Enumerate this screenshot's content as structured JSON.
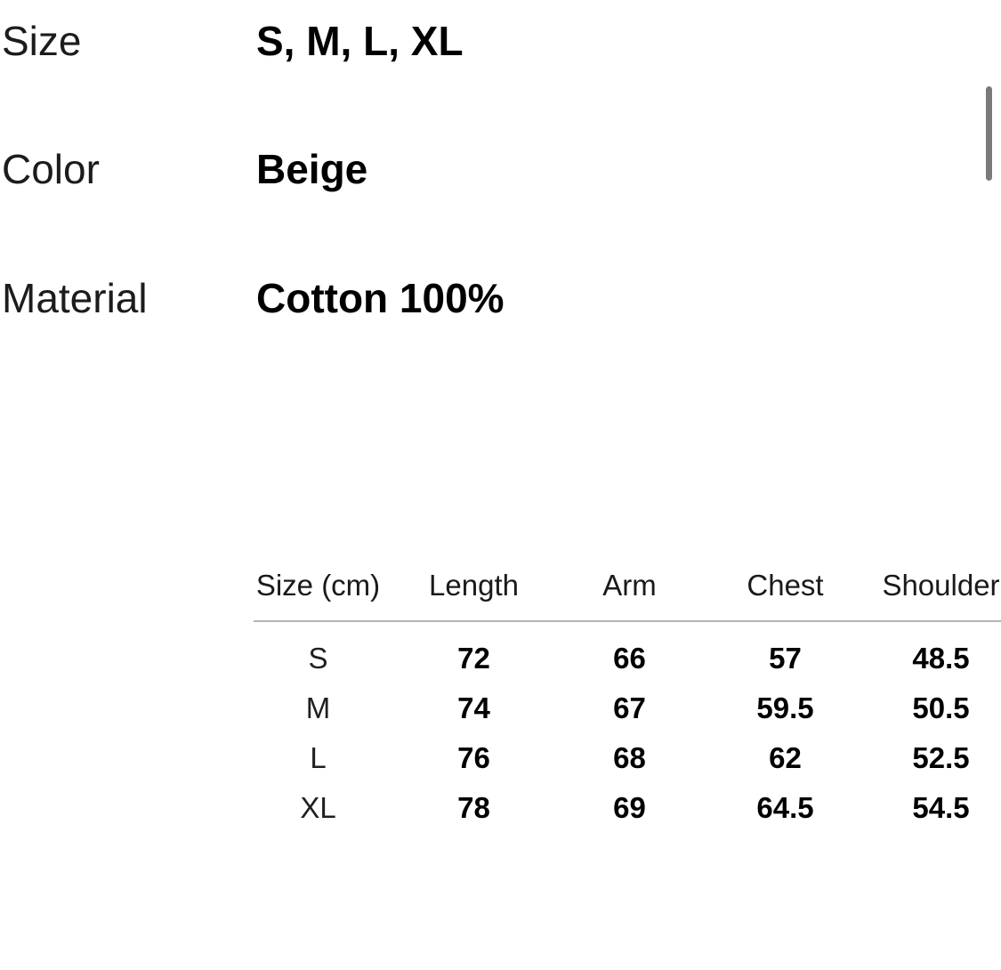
{
  "specs": [
    {
      "label": "Size",
      "value": "S, M, L, XL"
    },
    {
      "label": "Color",
      "value": "Beige"
    },
    {
      "label": "Material",
      "value": "Cotton 100%"
    }
  ],
  "size_table": {
    "headers": [
      "Size (cm)",
      "Length",
      "Arm",
      "Chest",
      "Shoulder"
    ],
    "rows": [
      [
        "S",
        "72",
        "66",
        "57",
        "48.5"
      ],
      [
        "M",
        "74",
        "67",
        "59.5",
        "50.5"
      ],
      [
        "L",
        "76",
        "68",
        "62",
        "52.5"
      ],
      [
        "XL",
        "78",
        "69",
        "64.5",
        "54.5"
      ]
    ]
  },
  "colors": {
    "background": "#ffffff",
    "text": "#111111",
    "table_rule": "#b3b3b3",
    "scrollbar_thumb": "#7a7a7a"
  }
}
